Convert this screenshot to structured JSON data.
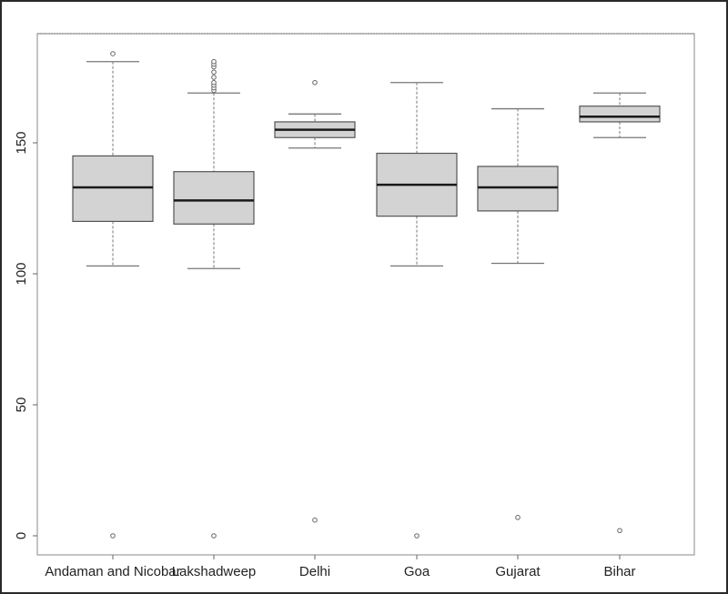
{
  "chart_data": {
    "type": "boxplot",
    "title": "",
    "xlabel": "",
    "ylabel": "",
    "ylim": [
      -8,
      192
    ],
    "yticks": [
      0,
      50,
      100,
      150
    ],
    "grid": false,
    "categories": [
      "Andaman and Nicobar",
      "Lakshadweep",
      "Delhi",
      "Goa",
      "Gujarat",
      "Bihar"
    ],
    "boxes": [
      {
        "name": "Andaman and Nicobar",
        "lower_whisker": 103,
        "q1": 120,
        "median": 133,
        "q3": 145,
        "upper_whisker": 181,
        "outliers": [
          184,
          0
        ]
      },
      {
        "name": "Lakshadweep",
        "lower_whisker": 102,
        "q1": 119,
        "median": 128,
        "q3": 139,
        "upper_whisker": 169,
        "outliers": [
          170,
          171,
          172,
          173,
          175,
          177,
          179,
          180,
          181,
          0
        ]
      },
      {
        "name": "Delhi",
        "lower_whisker": 148,
        "q1": 152,
        "median": 155,
        "q3": 158,
        "upper_whisker": 161,
        "outliers": [
          173,
          6
        ]
      },
      {
        "name": "Goa",
        "lower_whisker": 103,
        "q1": 122,
        "median": 134,
        "q3": 146,
        "upper_whisker": 173,
        "outliers": [
          0
        ]
      },
      {
        "name": "Gujarat",
        "lower_whisker": 104,
        "q1": 124,
        "median": 133,
        "q3": 141,
        "upper_whisker": 163,
        "outliers": [
          7
        ]
      },
      {
        "name": "Bihar",
        "lower_whisker": 152,
        "q1": 158,
        "median": 160,
        "q3": 164,
        "upper_whisker": 169,
        "outliers": [
          2
        ]
      }
    ],
    "colors": {
      "box_fill": "#d3d3d3",
      "box_border": "#555555",
      "median": "#1a1a1a",
      "whisker": "#777777",
      "axis": "#666666"
    }
  }
}
